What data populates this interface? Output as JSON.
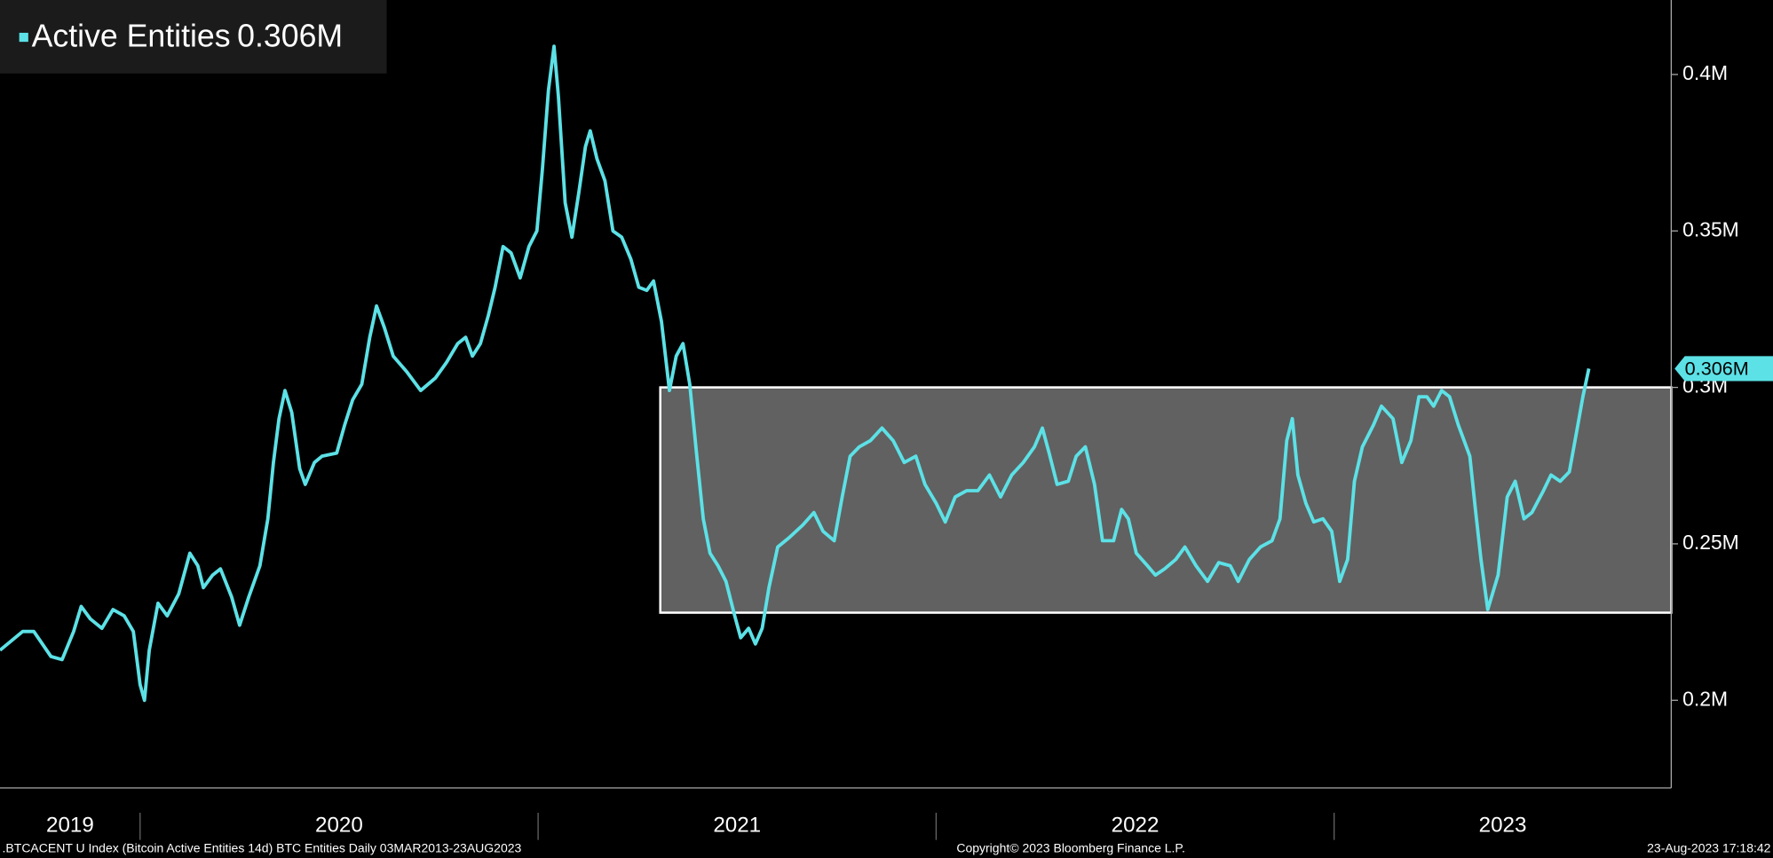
{
  "chart_data": {
    "type": "line",
    "series": [
      {
        "name": "Active Entities",
        "last_label": "0.306M",
        "color": "#5ce1e6",
        "x": [
          2019.648,
          2019.705,
          2019.733,
          2019.776,
          2019.804,
          2019.833,
          2019.852,
          2019.875,
          2019.904,
          2019.932,
          2019.96,
          2019.983,
          2020.0,
          2020.011,
          2020.023,
          2020.045,
          2020.068,
          2020.097,
          2020.125,
          2020.145,
          2020.159,
          2020.182,
          2020.202,
          2020.23,
          2020.25,
          2020.273,
          2020.301,
          2020.321,
          2020.335,
          2020.349,
          2020.364,
          2020.381,
          2020.401,
          2020.415,
          2020.438,
          2020.457,
          2020.494,
          2020.514,
          2020.534,
          2020.557,
          2020.577,
          2020.594,
          2020.614,
          2020.636,
          2020.67,
          2020.705,
          2020.742,
          2020.77,
          2020.798,
          2020.818,
          2020.835,
          2020.855,
          2020.875,
          2020.892,
          2020.912,
          2020.932,
          2020.955,
          2020.977,
          2020.997,
          2021.011,
          2021.026,
          2021.04,
          2021.051,
          2021.068,
          2021.085,
          2021.102,
          2021.119,
          2021.131,
          2021.148,
          2021.168,
          2021.188,
          2021.21,
          2021.233,
          2021.253,
          2021.273,
          2021.29,
          2021.31,
          2021.33,
          2021.347,
          2021.364,
          2021.381,
          2021.398,
          2021.415,
          2021.432,
          2021.452,
          2021.472,
          2021.494,
          2021.509,
          2021.529,
          2021.546,
          2021.563,
          2021.58,
          2021.602,
          2021.631,
          2021.665,
          2021.693,
          2021.716,
          2021.744,
          2021.764,
          2021.784,
          2021.807,
          2021.835,
          2021.864,
          2021.892,
          2021.92,
          2021.949,
          2021.972,
          2022.0,
          2022.023,
          2022.048,
          2022.077,
          2022.105,
          2022.134,
          2022.162,
          2022.19,
          2022.219,
          2022.247,
          2022.267,
          2022.284,
          2022.304,
          2022.332,
          2022.352,
          2022.375,
          2022.398,
          2022.418,
          2022.446,
          2022.466,
          2022.483,
          2022.503,
          2022.531,
          2022.551,
          2022.574,
          2022.602,
          2022.625,
          2022.653,
          2022.682,
          2022.71,
          2022.739,
          2022.759,
          2022.787,
          2022.815,
          2022.844,
          2022.864,
          2022.881,
          2022.895,
          2022.909,
          2022.929,
          2022.949,
          2022.972,
          2022.994,
          2023.014,
          2023.034,
          2023.051,
          2023.071,
          2023.099,
          2023.119,
          2023.148,
          2023.17,
          2023.193,
          2023.213,
          2023.233,
          2023.25,
          2023.27,
          2023.29,
          2023.312,
          2023.341,
          2023.355,
          2023.369,
          2023.386,
          2023.412,
          2023.435,
          2023.455,
          2023.477,
          2023.497,
          2023.526,
          2023.545,
          2023.568,
          2023.591,
          2023.611,
          2023.625,
          2023.64
        ],
        "values": [
          0.216,
          0.222,
          0.222,
          0.214,
          0.213,
          0.222,
          0.23,
          0.226,
          0.223,
          0.229,
          0.227,
          0.222,
          0.205,
          0.2,
          0.216,
          0.231,
          0.227,
          0.234,
          0.247,
          0.243,
          0.236,
          0.24,
          0.242,
          0.233,
          0.224,
          0.233,
          0.243,
          0.258,
          0.276,
          0.29,
          0.299,
          0.292,
          0.274,
          0.269,
          0.276,
          0.278,
          0.279,
          0.288,
          0.296,
          0.301,
          0.316,
          0.326,
          0.319,
          0.31,
          0.305,
          0.299,
          0.303,
          0.308,
          0.314,
          0.316,
          0.31,
          0.314,
          0.323,
          0.332,
          0.345,
          0.343,
          0.335,
          0.345,
          0.35,
          0.37,
          0.395,
          0.409,
          0.393,
          0.359,
          0.348,
          0.362,
          0.377,
          0.382,
          0.373,
          0.366,
          0.35,
          0.348,
          0.341,
          0.332,
          0.331,
          0.334,
          0.321,
          0.299,
          0.31,
          0.314,
          0.301,
          0.279,
          0.258,
          0.247,
          0.243,
          0.238,
          0.227,
          0.22,
          0.223,
          0.218,
          0.223,
          0.236,
          0.249,
          0.252,
          0.256,
          0.26,
          0.254,
          0.251,
          0.265,
          0.278,
          0.281,
          0.283,
          0.287,
          0.283,
          0.276,
          0.278,
          0.269,
          0.263,
          0.257,
          0.265,
          0.267,
          0.267,
          0.272,
          0.265,
          0.272,
          0.276,
          0.281,
          0.287,
          0.279,
          0.269,
          0.27,
          0.278,
          0.281,
          0.269,
          0.251,
          0.251,
          0.261,
          0.258,
          0.247,
          0.243,
          0.24,
          0.242,
          0.245,
          0.249,
          0.243,
          0.238,
          0.244,
          0.243,
          0.238,
          0.245,
          0.249,
          0.251,
          0.258,
          0.283,
          0.29,
          0.272,
          0.263,
          0.257,
          0.258,
          0.254,
          0.238,
          0.245,
          0.27,
          0.281,
          0.288,
          0.294,
          0.29,
          0.276,
          0.283,
          0.297,
          0.297,
          0.294,
          0.299,
          0.297,
          0.288,
          0.278,
          0.261,
          0.245,
          0.229,
          0.24,
          0.265,
          0.27,
          0.258,
          0.26,
          0.267,
          0.272,
          0.27,
          0.273,
          0.287,
          0.297,
          0.306
        ]
      }
    ],
    "band": {
      "x": [
        2021.307,
        2023.847
      ],
      "y": [
        0.228,
        0.3
      ]
    },
    "xlim": [
      2019.648,
      2023.847
    ],
    "xticks": [
      2020,
      2021,
      2022,
      2023
    ],
    "xlabels": [
      "2019",
      "2020",
      "2021",
      "2022",
      "2023"
    ],
    "ylim": [
      0.172,
      0.4238
    ],
    "yticks": [
      {
        "value": 0.2,
        "label": "0.2M"
      },
      {
        "value": 0.25,
        "label": "0.25M"
      },
      {
        "value": 0.3,
        "label": "0.3M"
      },
      {
        "value": 0.35,
        "label": "0.35M"
      },
      {
        "value": 0.4,
        "label": "0.4M"
      }
    ],
    "footer": {
      "left": ".BTCACENT U Index (Bitcoin Active Entities 14d) BTC Entities  Daily 03MAR2013-23AUG2023",
      "center": "Copyright© 2023 Bloomberg Finance L.P.",
      "right": "23-Aug-2023 17:18:42"
    }
  }
}
